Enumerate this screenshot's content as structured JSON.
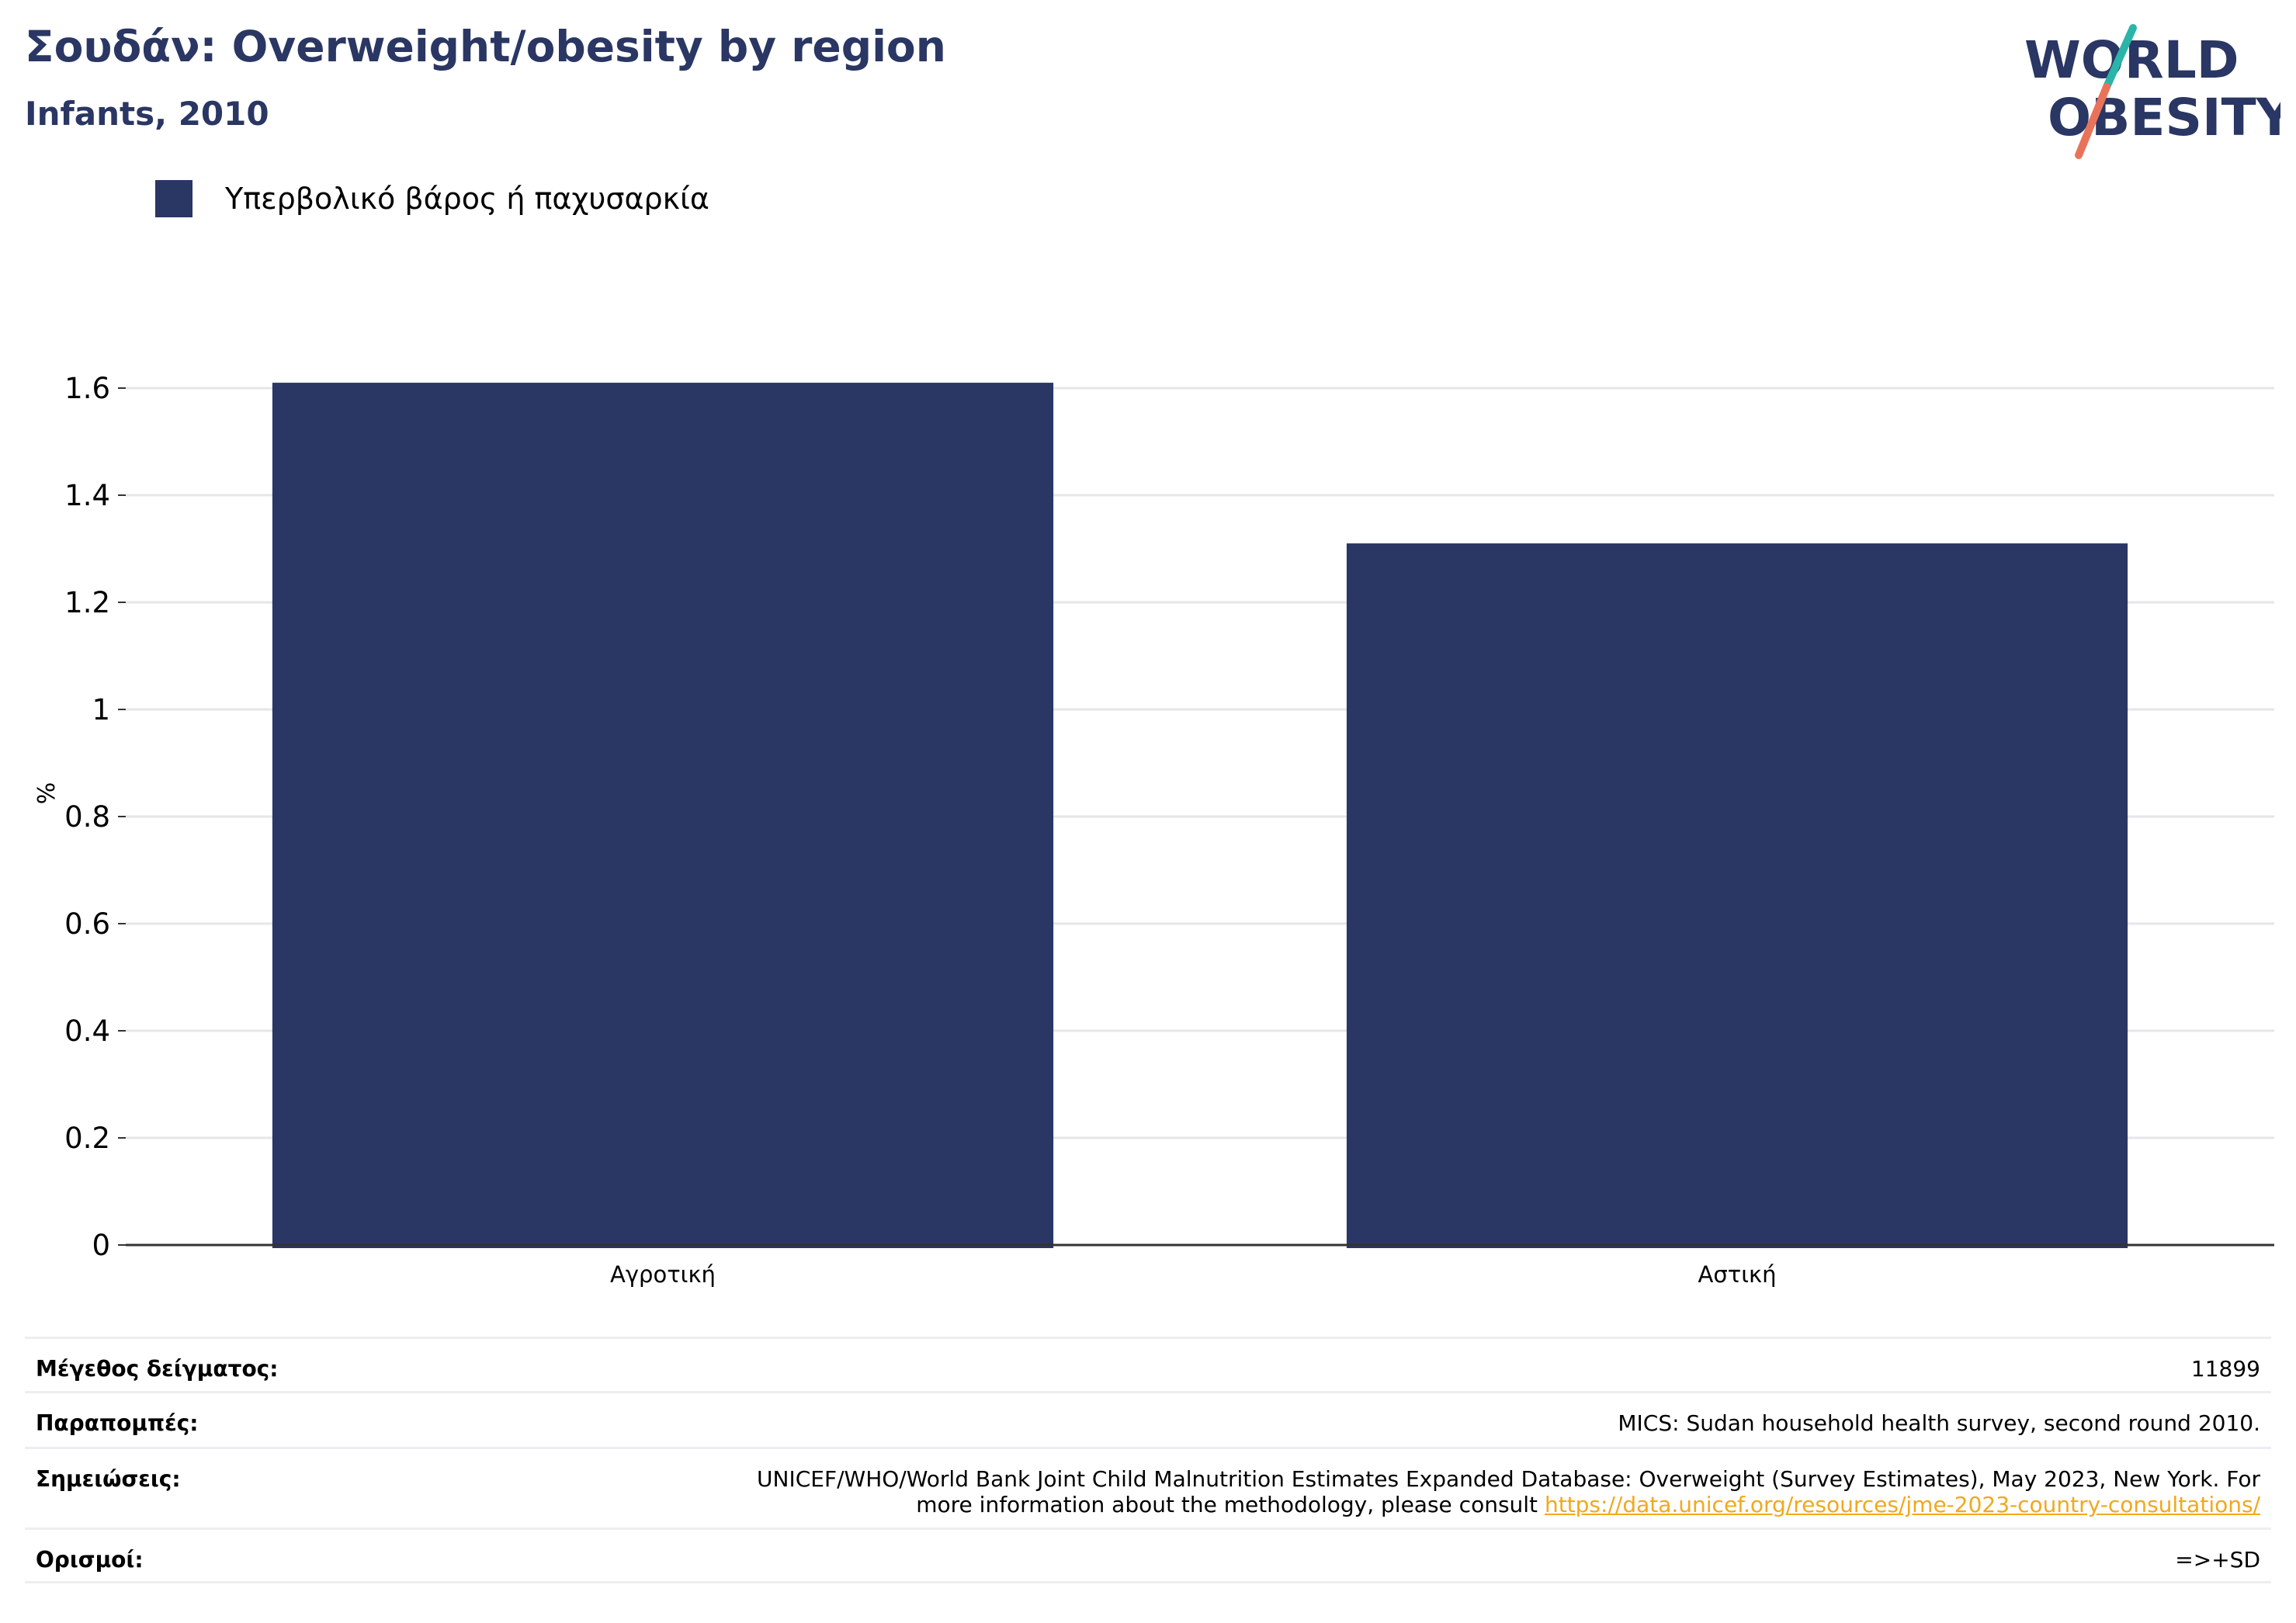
{
  "header": {
    "title": "Σουδάν: Overweight/obesity by region",
    "subtitle": "Infants, 2010"
  },
  "logo": {
    "line1": "WORLD",
    "line2": "OBESITY",
    "icon": "world-obesity-logo"
  },
  "colors": {
    "bar": "#2a3663",
    "title": "#2a3663",
    "grid": "#e6e6ea",
    "axis": "#333333",
    "link": "#f2a81d",
    "logo_teal": "#2ab5a8",
    "logo_coral": "#e8735a"
  },
  "chart_data": {
    "type": "bar",
    "title": "Σουδάν: Overweight/obesity by region",
    "subtitle": "Infants, 2010",
    "categories": [
      "Αγροτική",
      "Αστική"
    ],
    "series": [
      {
        "name": "Υπερβολικό βάρος ή παχυσαρκία",
        "values": [
          1.61,
          1.31
        ]
      }
    ],
    "ylabel": "%",
    "xlabel": "",
    "ylim": [
      0,
      1.6
    ],
    "yticks": [
      0,
      0.2,
      0.4,
      0.6,
      0.8,
      1,
      1.2,
      1.4,
      1.6
    ],
    "ytick_labels": [
      "0",
      "0.2",
      "0.4",
      "0.6",
      "0.8",
      "1",
      "1.2",
      "1.4",
      "1.6"
    ],
    "grid": true,
    "legend_position": "top-left"
  },
  "footer": {
    "sample_size": {
      "label": "Μέγεθος δείγματος:",
      "value": "11899"
    },
    "references": {
      "label": "Παραπομπές:",
      "value": "MICS: Sudan household health survey, second round 2010."
    },
    "notes": {
      "label": "Σημειώσεις:",
      "text1": "UNICEF/WHO/World Bank Joint Child Malnutrition Estimates Expanded Database: Overweight (Survey Estimates), May 2023, New York. For",
      "text2": "more information about the methodology, please consult",
      "link": "https://data.unicef.org/resources/jme-2023-country-consultations/"
    },
    "definitions": {
      "label": "Ορισμοί:",
      "value": "=>+SD"
    }
  }
}
